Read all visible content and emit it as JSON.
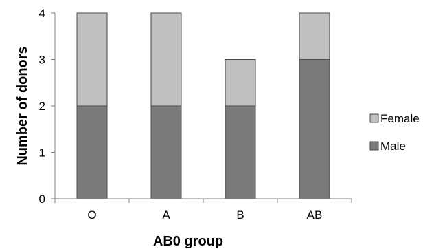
{
  "chart_data": {
    "type": "bar",
    "stacked": true,
    "title": "",
    "xlabel": "AB0 group",
    "ylabel": "Number of donors",
    "categories": [
      "O",
      "A",
      "B",
      "AB"
    ],
    "ylim": [
      0,
      4
    ],
    "yticks": [
      "0",
      "1",
      "2",
      "3",
      "4"
    ],
    "grid": false,
    "legend_position": "right",
    "series": [
      {
        "name": "Male",
        "values": [
          2,
          2,
          2,
          3
        ],
        "color": "#7a7a7a"
      },
      {
        "name": "Female",
        "values": [
          2,
          2,
          1,
          1
        ],
        "color": "#c0c0c0"
      }
    ],
    "legend": [
      "Female",
      "Male"
    ]
  }
}
